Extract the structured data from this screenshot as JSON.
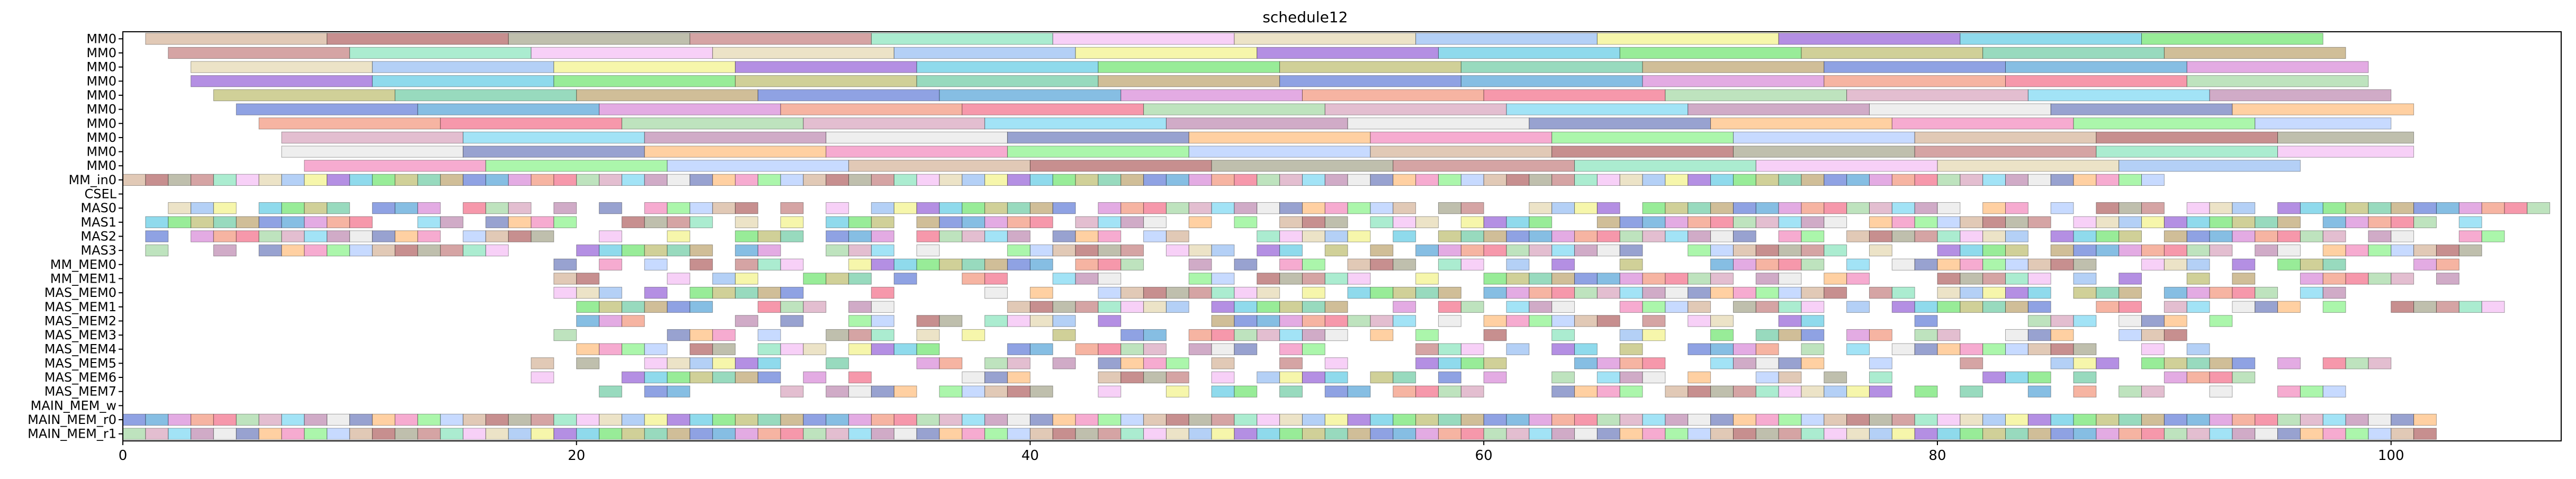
{
  "chart_data": {
    "type": "gantt",
    "title": "schedule12",
    "xlabel": "",
    "ylabel": "",
    "xlim": [
      0,
      107.5
    ],
    "x_ticks": [
      0,
      20,
      40,
      60,
      80,
      100
    ],
    "grid": false,
    "rows": [
      "MM0",
      "MM0",
      "MM0",
      "MM0",
      "MM0",
      "MM0",
      "MM0",
      "MM0",
      "MM0",
      "MM0",
      "MM_in0",
      "CSEL",
      "MAS0",
      "MAS1",
      "MAS2",
      "MAS3",
      "MM_MEM0",
      "MM_MEM1",
      "MAS_MEM0",
      "MAS_MEM1",
      "MAS_MEM2",
      "MAS_MEM3",
      "MAS_MEM4",
      "MAS_MEM5",
      "MAS_MEM6",
      "MAS_MEM7",
      "MAIN_MEM_w",
      "MAIN_MEM_r0",
      "MAIN_MEM_r1"
    ],
    "long_rows": [
      {
        "row": 0,
        "start": 1,
        "end": 97
      },
      {
        "row": 1,
        "start": 2,
        "end": 98
      },
      {
        "row": 2,
        "start": 3,
        "end": 99
      },
      {
        "row": 3,
        "start": 3,
        "end": 99
      },
      {
        "row": 4,
        "start": 4,
        "end": 100
      },
      {
        "row": 5,
        "start": 5,
        "end": 101
      },
      {
        "row": 6,
        "start": 6,
        "end": 100
      },
      {
        "row": 7,
        "start": 7,
        "end": 101
      },
      {
        "row": 8,
        "start": 7,
        "end": 101
      },
      {
        "row": 9,
        "start": 8,
        "end": 96
      }
    ],
    "short_rows": [
      {
        "row": 10,
        "start": 0,
        "end": 90,
        "density": 1.0
      },
      {
        "row": 12,
        "start": 1,
        "end": 107,
        "density": 0.8
      },
      {
        "row": 13,
        "start": 1,
        "end": 104,
        "density": 0.8
      },
      {
        "row": 14,
        "start": 1,
        "end": 105,
        "density": 0.75
      },
      {
        "row": 15,
        "start": 1,
        "end": 104,
        "density": 0.75
      },
      {
        "row": 16,
        "start": 19,
        "end": 103,
        "density": 0.7
      },
      {
        "row": 17,
        "start": 19,
        "end": 104,
        "density": 0.7
      },
      {
        "row": 18,
        "start": 19,
        "end": 98,
        "density": 0.7
      },
      {
        "row": 19,
        "start": 19,
        "end": 107,
        "density": 0.65
      },
      {
        "row": 20,
        "start": 19,
        "end": 93,
        "density": 0.6
      },
      {
        "row": 21,
        "start": 19,
        "end": 92,
        "density": 0.6
      },
      {
        "row": 22,
        "start": 19,
        "end": 92,
        "density": 0.6
      },
      {
        "row": 23,
        "start": 18,
        "end": 100,
        "density": 0.55
      },
      {
        "row": 24,
        "start": 18,
        "end": 94,
        "density": 0.55
      },
      {
        "row": 25,
        "start": 18,
        "end": 99,
        "density": 0.55
      },
      {
        "row": 27,
        "start": 0,
        "end": 102,
        "density": 1.0
      },
      {
        "row": 28,
        "start": 0,
        "end": 102,
        "density": 1.0
      }
    ],
    "block_len_long": 8,
    "block_len_short": 1,
    "colors": [
      "#c99d7a",
      "#993333",
      "#8a8a6a",
      "#b35a5a",
      "#66ddaa",
      "#f0aaf0",
      "#ddcc99",
      "#77aaee",
      "#eeee66",
      "#7733cc",
      "#33bbdd",
      "#44dd44",
      "#aaaa44",
      "#44bb88",
      "#aa8844",
      "#3355cc",
      "#2288cc",
      "#cc66cc",
      "#ee7755",
      "#ee4466",
      "#88cc88",
      "#cc88aa",
      "#55ccee",
      "#aa6699",
      "#e0e0e0",
      "#4455aa",
      "#ffaa55",
      "#ee66aa",
      "#66ee66",
      "#99bbff"
    ]
  }
}
